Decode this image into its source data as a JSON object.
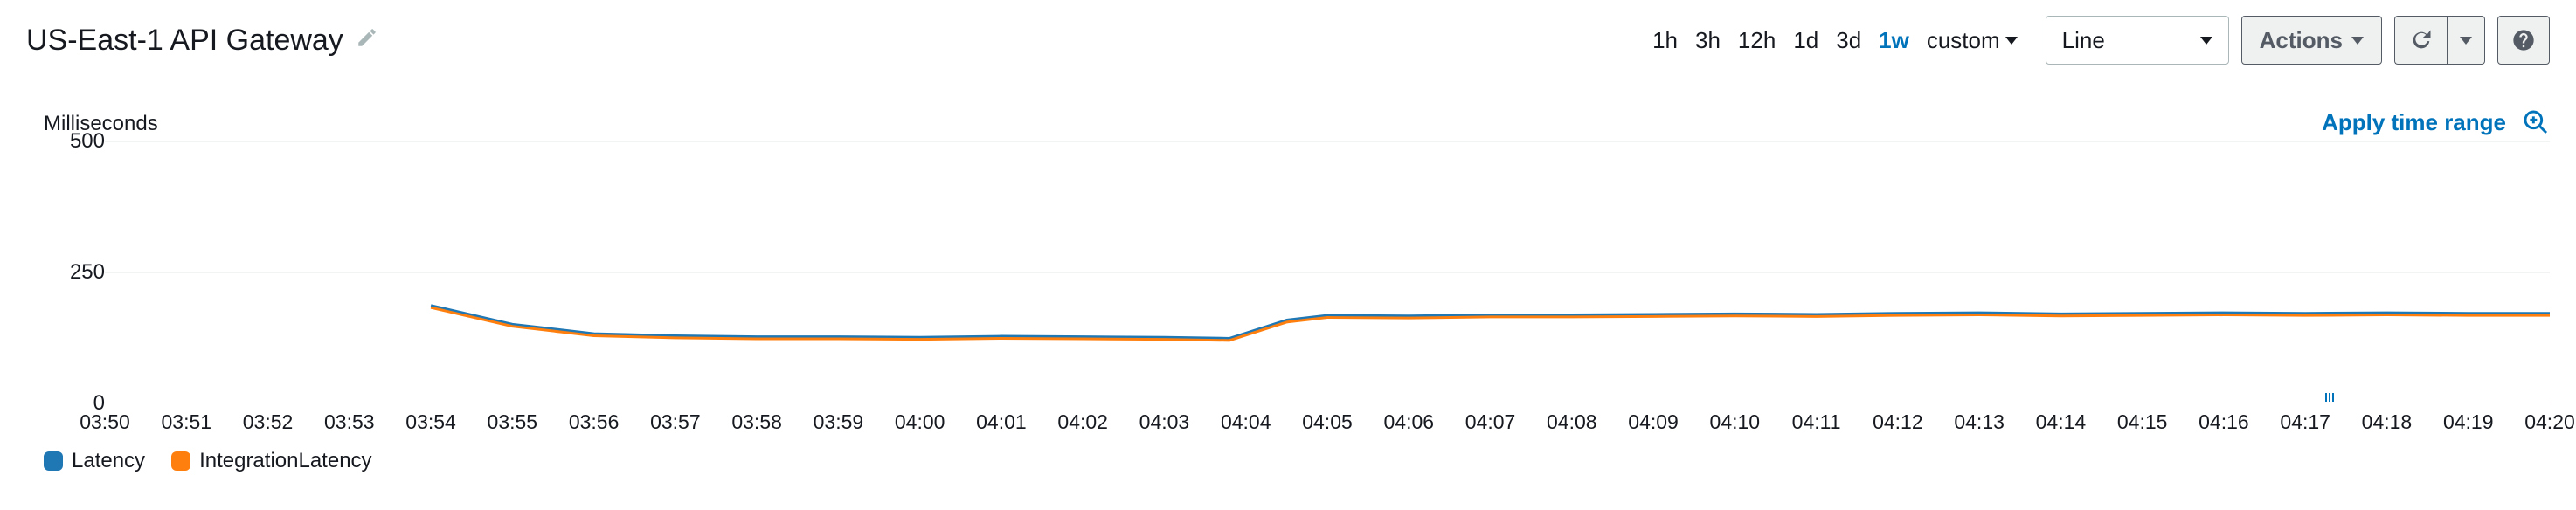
{
  "header": {
    "title": "US-East-1 API Gateway",
    "time_options": [
      "1h",
      "3h",
      "12h",
      "1d",
      "3d",
      "1w",
      "custom"
    ],
    "time_selected": "1w",
    "chart_type": "Line",
    "actions_label": "Actions"
  },
  "subheader": {
    "y_unit": "Milliseconds",
    "apply_label": "Apply time range"
  },
  "chart": {
    "type": "line",
    "ylim": [
      0,
      500
    ],
    "ytick_step": 250,
    "yticks": [
      0,
      250,
      500
    ],
    "xlabels": [
      "03:50",
      "03:51",
      "03:52",
      "03:53",
      "03:54",
      "03:55",
      "03:56",
      "03:57",
      "03:58",
      "03:59",
      "04:00",
      "04:01",
      "04:02",
      "04:03",
      "04:04",
      "04:05",
      "04:06",
      "04:07",
      "04:08",
      "04:09",
      "04:10",
      "04:11",
      "04:12",
      "04:13",
      "04:14",
      "04:15",
      "04:16",
      "04:17",
      "04:18",
      "04:19",
      "04:20"
    ],
    "marker_x_index": 27.3,
    "background_color": "#ffffff",
    "grid_color": "#f2f3f3",
    "axis_color": "#d5dbdb",
    "line_width": 3,
    "series": [
      {
        "name": "Latency",
        "color": "#1f77b4",
        "x": [
          4,
          5,
          6,
          7,
          8,
          9,
          10,
          11,
          12,
          13,
          13.8,
          14.5,
          15,
          16,
          17,
          18,
          19,
          20,
          21,
          22,
          23,
          24,
          25,
          26,
          27,
          28,
          29,
          30
        ],
        "y": [
          186,
          150,
          132,
          128,
          126,
          126,
          125,
          127,
          126,
          125,
          123,
          158,
          167,
          166,
          168,
          168,
          169,
          170,
          169,
          171,
          172,
          170,
          171,
          172,
          171,
          172,
          171,
          171
        ]
      },
      {
        "name": "IntegrationLatency",
        "color": "#ff7f0e",
        "x": [
          4,
          5,
          6,
          7,
          8,
          9,
          10,
          11,
          12,
          13,
          13.8,
          14.5,
          15,
          16,
          17,
          18,
          19,
          20,
          21,
          22,
          23,
          24,
          25,
          26,
          27,
          28,
          29,
          30
        ],
        "y": [
          182,
          146,
          128,
          124,
          122,
          122,
          121,
          123,
          122,
          121,
          119,
          154,
          163,
          162,
          164,
          164,
          165,
          166,
          165,
          167,
          168,
          166,
          167,
          168,
          167,
          168,
          167,
          167
        ]
      }
    ]
  },
  "legend": [
    {
      "label": "Latency",
      "color": "#1f77b4"
    },
    {
      "label": "IntegrationLatency",
      "color": "#ff7f0e"
    }
  ]
}
